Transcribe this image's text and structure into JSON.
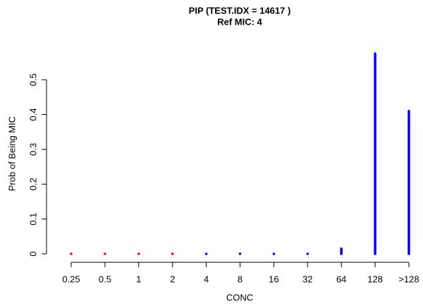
{
  "chart_data": {
    "type": "spike",
    "title": "PIP (TEST.IDX = 14617 )",
    "subtitle": "Ref MIC: 4",
    "x_label": "CONC",
    "y_label": "Prob of Being MIC",
    "categories": [
      "0.25",
      "0.5",
      "1",
      "2",
      "4",
      "8",
      "16",
      "32",
      "64",
      "128",
      ">128"
    ],
    "values": [
      0,
      0,
      0,
      0,
      0,
      0,
      0,
      0,
      0.015,
      0.575,
      0.41
    ],
    "colors": [
      "#ff0000",
      "#ff0000",
      "#ff0000",
      "#ff0000",
      "#0000ff",
      "#0000ff",
      "#0000ff",
      "#0000ff",
      "#0000ff",
      "#0000ff",
      "#0000ff"
    ],
    "ylim": [
      0,
      0.575
    ],
    "yticks": [
      0,
      0.1,
      0.2,
      0.3,
      0.4,
      0.5
    ]
  }
}
